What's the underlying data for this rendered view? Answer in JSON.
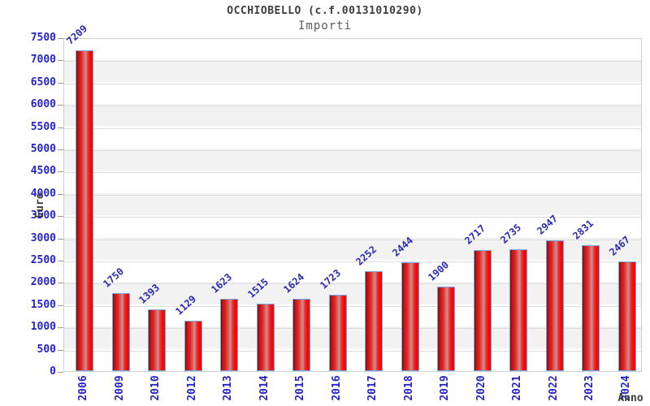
{
  "header": {
    "title": "OCCHIOBELLO (c.f.00131010290)",
    "subtitle": "Importi"
  },
  "chart_data": {
    "type": "bar",
    "title": "OCCHIOBELLO (c.f.00131010290)",
    "subtitle": "Importi",
    "categories": [
      "2006",
      "2009",
      "2010",
      "2012",
      "2013",
      "2014",
      "2015",
      "2016",
      "2017",
      "2018",
      "2019",
      "2020",
      "2021",
      "2022",
      "2023",
      "2024"
    ],
    "values": [
      7209,
      1750,
      1393,
      1129,
      1623,
      1515,
      1624,
      1723,
      2252,
      2444,
      1900,
      2717,
      2735,
      2947,
      2831,
      2467
    ],
    "xlabel": "Anno",
    "ylabel": "Euro",
    "ylim": [
      0,
      7500
    ],
    "ytick_step": 500,
    "grid": true,
    "legend_position": "none",
    "band_colors": [
      "#ffffff",
      "#f2f2f2"
    ],
    "gridline_color": "#dcdcdc",
    "bar_color_dark": "#7e0d0d",
    "bar_color_main": "#e52222",
    "bar_color_highlight": "#c98f8f",
    "bar_border_color": "#74a7e0",
    "tick_label_color": "#2424c8",
    "value_label_color": "#2a2ab4",
    "title_color": "#3d3d3d"
  }
}
